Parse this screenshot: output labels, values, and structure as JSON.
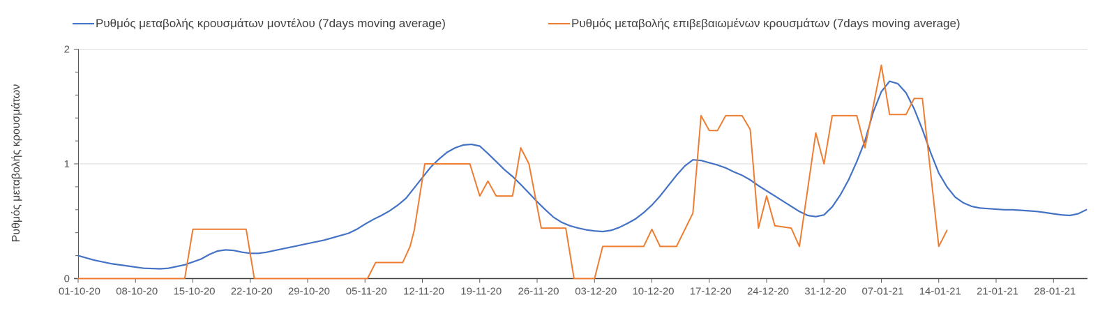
{
  "colors": {
    "series_model": "#4472C4",
    "series_confirmed": "#ED7D31",
    "gridline": "#D9D9D9",
    "axis_line": "#595959",
    "x_axis_line": "#404040",
    "tick_label": "#595959",
    "legend_text": "#3F3F3F",
    "background": "#FFFFFF"
  },
  "chart_data": {
    "type": "line",
    "ylabel": "Ρυθμός μεταβολής κρουσμάτων",
    "ylim": [
      0,
      2
    ],
    "yticks": [
      0,
      1,
      2
    ],
    "y_minor_tick_step": 0.2,
    "grid_values": [
      1,
      2
    ],
    "grid": "horizontal-only",
    "legend_position": "top",
    "x_unit": "days since 01-10-20",
    "xtick_interval_days": 7,
    "x_range_days": [
      0,
      123
    ],
    "xtick_labels": [
      "01-10-20",
      "08-10-20",
      "15-10-20",
      "22-10-20",
      "29-10-20",
      "05-11-20",
      "12-11-20",
      "19-11-20",
      "26-11-20",
      "03-12-20",
      "10-12-20",
      "17-12-20",
      "24-12-20",
      "31-12-20",
      "07-01-21",
      "14-01-21",
      "21-01-21",
      "28-01-21"
    ],
    "series": [
      {
        "id": "model",
        "name": "Ρυθμός μεταβολής κρουσμάτων μοντέλου (7days moving average)",
        "color": "#4472C4",
        "style": "smooth",
        "points": [
          [
            0,
            0.2
          ],
          [
            2,
            0.16
          ],
          [
            4,
            0.13
          ],
          [
            6,
            0.11
          ],
          [
            8,
            0.09
          ],
          [
            10,
            0.085
          ],
          [
            11,
            0.09
          ],
          [
            13,
            0.12
          ],
          [
            15,
            0.17
          ],
          [
            16,
            0.21
          ],
          [
            17,
            0.24
          ],
          [
            18,
            0.25
          ],
          [
            19,
            0.245
          ],
          [
            20,
            0.23
          ],
          [
            21,
            0.22
          ],
          [
            22,
            0.22
          ],
          [
            23,
            0.23
          ],
          [
            24,
            0.245
          ],
          [
            25,
            0.26
          ],
          [
            26,
            0.275
          ],
          [
            28,
            0.305
          ],
          [
            30,
            0.335
          ],
          [
            32,
            0.375
          ],
          [
            33,
            0.395
          ],
          [
            34,
            0.43
          ],
          [
            35,
            0.475
          ],
          [
            36,
            0.515
          ],
          [
            37,
            0.55
          ],
          [
            38,
            0.59
          ],
          [
            39,
            0.64
          ],
          [
            40,
            0.7
          ],
          [
            41,
            0.79
          ],
          [
            42,
            0.88
          ],
          [
            43,
            0.97
          ],
          [
            44,
            1.04
          ],
          [
            45,
            1.1
          ],
          [
            46,
            1.14
          ],
          [
            47,
            1.165
          ],
          [
            48,
            1.17
          ],
          [
            49,
            1.155
          ],
          [
            50,
            1.09
          ],
          [
            51,
            1.02
          ],
          [
            52,
            0.95
          ],
          [
            53,
            0.89
          ],
          [
            54,
            0.82
          ],
          [
            55,
            0.745
          ],
          [
            56,
            0.67
          ],
          [
            57,
            0.6
          ],
          [
            58,
            0.535
          ],
          [
            59,
            0.49
          ],
          [
            60,
            0.46
          ],
          [
            61,
            0.44
          ],
          [
            62,
            0.425
          ],
          [
            63,
            0.415
          ],
          [
            64,
            0.41
          ],
          [
            65,
            0.42
          ],
          [
            66,
            0.445
          ],
          [
            67,
            0.48
          ],
          [
            68,
            0.52
          ],
          [
            69,
            0.575
          ],
          [
            70,
            0.64
          ],
          [
            71,
            0.72
          ],
          [
            72,
            0.81
          ],
          [
            73,
            0.9
          ],
          [
            74,
            0.98
          ],
          [
            75,
            1.035
          ],
          [
            76,
            1.03
          ],
          [
            77,
            1.01
          ],
          [
            78,
            0.99
          ],
          [
            79,
            0.965
          ],
          [
            80,
            0.93
          ],
          [
            81,
            0.9
          ],
          [
            82,
            0.86
          ],
          [
            83,
            0.81
          ],
          [
            84,
            0.765
          ],
          [
            85,
            0.72
          ],
          [
            86,
            0.675
          ],
          [
            87,
            0.63
          ],
          [
            88,
            0.585
          ],
          [
            89,
            0.55
          ],
          [
            90,
            0.54
          ],
          [
            91,
            0.555
          ],
          [
            92,
            0.625
          ],
          [
            93,
            0.73
          ],
          [
            94,
            0.86
          ],
          [
            95,
            1.02
          ],
          [
            96,
            1.2
          ],
          [
            97,
            1.45
          ],
          [
            98,
            1.63
          ],
          [
            99,
            1.72
          ],
          [
            100,
            1.7
          ],
          [
            101,
            1.62
          ],
          [
            102,
            1.48
          ],
          [
            103,
            1.3
          ],
          [
            104,
            1.1
          ],
          [
            105,
            0.92
          ],
          [
            106,
            0.8
          ],
          [
            107,
            0.71
          ],
          [
            108,
            0.66
          ],
          [
            109,
            0.63
          ],
          [
            110,
            0.615
          ],
          [
            111,
            0.61
          ],
          [
            112,
            0.605
          ],
          [
            113,
            0.6
          ],
          [
            114,
            0.6
          ],
          [
            115,
            0.595
          ],
          [
            116,
            0.59
          ],
          [
            117,
            0.585
          ],
          [
            118,
            0.575
          ],
          [
            119,
            0.565
          ],
          [
            120,
            0.555
          ],
          [
            121,
            0.55
          ],
          [
            122,
            0.565
          ],
          [
            123,
            0.6
          ]
        ]
      },
      {
        "id": "confirmed",
        "name": "Ρυθμός μεταβολής επιβεβαιωμένων κρουσμάτων (7days moving average)",
        "color": "#ED7D31",
        "style": "segmented",
        "points": [
          [
            0,
            0
          ],
          [
            13,
            0
          ],
          [
            14,
            0.43
          ],
          [
            20.5,
            0.43
          ],
          [
            21.5,
            0
          ],
          [
            35.3,
            0
          ],
          [
            36.3,
            0.14
          ],
          [
            39.6,
            0.14
          ],
          [
            40.5,
            0.28
          ],
          [
            41,
            0.42
          ],
          [
            42.3,
            1.0
          ],
          [
            47.8,
            1.0
          ],
          [
            49,
            0.72
          ],
          [
            50,
            0.85
          ],
          [
            51,
            0.72
          ],
          [
            53,
            0.72
          ],
          [
            54,
            1.14
          ],
          [
            55,
            1.0
          ],
          [
            56.5,
            0.44
          ],
          [
            59.5,
            0.44
          ],
          [
            60.5,
            0
          ],
          [
            63,
            0
          ],
          [
            64,
            0.28
          ],
          [
            69,
            0.28
          ],
          [
            70,
            0.43
          ],
          [
            71,
            0.28
          ],
          [
            73,
            0.28
          ],
          [
            75,
            0.57
          ],
          [
            76,
            1.42
          ],
          [
            77,
            1.29
          ],
          [
            78,
            1.29
          ],
          [
            79,
            1.42
          ],
          [
            81,
            1.42
          ],
          [
            82,
            1.3
          ],
          [
            83,
            0.44
          ],
          [
            84,
            0.72
          ],
          [
            85,
            0.46
          ],
          [
            87,
            0.44
          ],
          [
            88,
            0.28
          ],
          [
            90,
            1.27
          ],
          [
            91,
            1.0
          ],
          [
            92,
            1.42
          ],
          [
            95,
            1.42
          ],
          [
            96,
            1.14
          ],
          [
            98,
            1.86
          ],
          [
            99,
            1.43
          ],
          [
            101,
            1.43
          ],
          [
            102,
            1.57
          ],
          [
            103,
            1.57
          ],
          [
            105,
            0.28
          ],
          [
            106,
            0.42
          ]
        ]
      }
    ]
  }
}
